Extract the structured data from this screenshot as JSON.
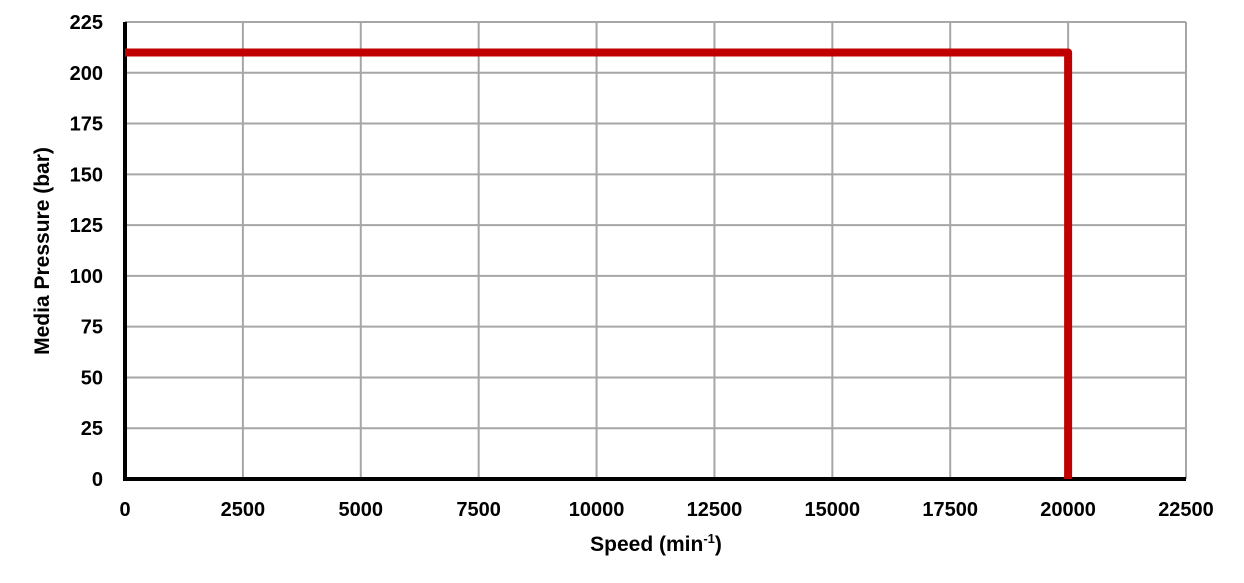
{
  "chart_data": {
    "type": "line",
    "title": "",
    "xlabel": "Speed (min",
    "xlabel_sup": "-1",
    "xlabel_suffix": ")",
    "ylabel": "Media Pressure (bar)",
    "xlim": [
      0,
      22500
    ],
    "ylim": [
      0,
      225
    ],
    "xticks": [
      0,
      2500,
      5000,
      7500,
      10000,
      12500,
      15000,
      17500,
      20000,
      22500
    ],
    "yticks": [
      0,
      25,
      50,
      75,
      100,
      125,
      150,
      175,
      200,
      225
    ],
    "grid": true,
    "legend": "none",
    "series": [
      {
        "color": "#c00000",
        "x": [
          0,
          20000,
          20000
        ],
        "y": [
          210,
          210,
          0
        ]
      }
    ]
  },
  "colors": {
    "series": "#c00000",
    "grid": "#a6a6a6",
    "axis": "#000000",
    "background": "#ffffff"
  }
}
